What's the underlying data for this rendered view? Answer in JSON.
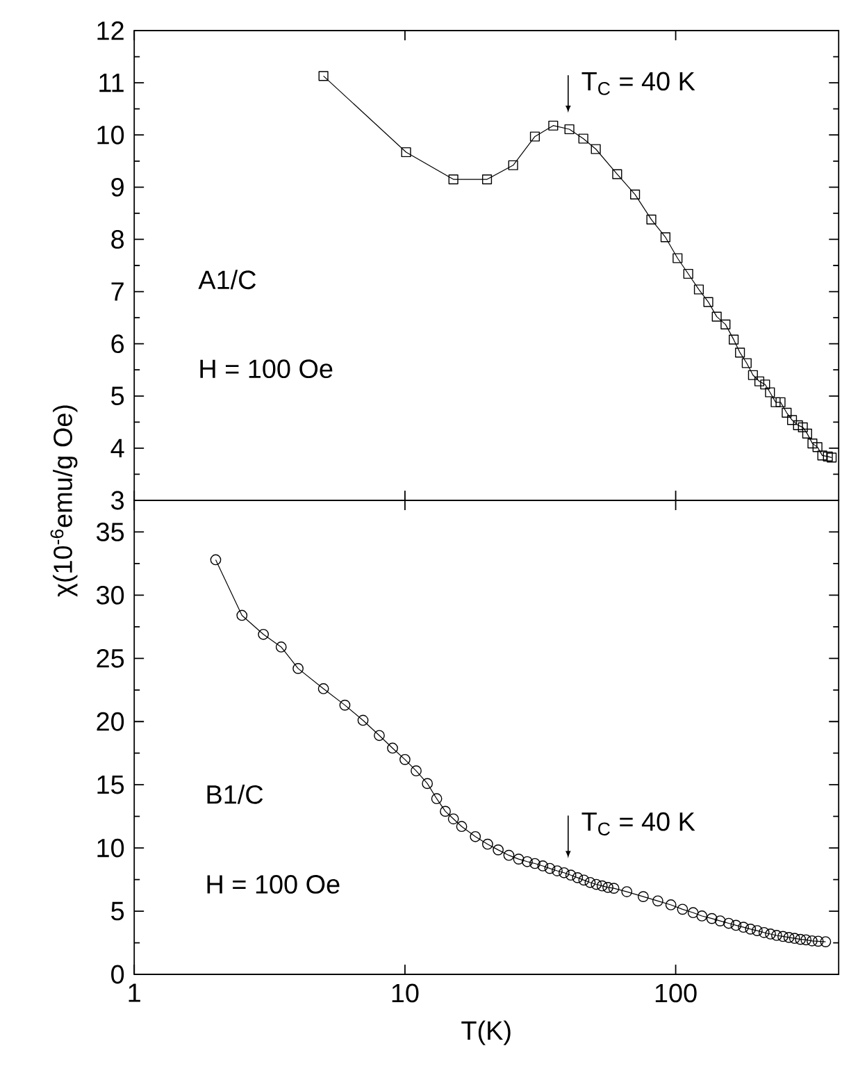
{
  "chart_data": [
    {
      "type": "line",
      "marker": "square",
      "line_style": "solid",
      "log": "x",
      "tick_labels": "y",
      "xlim": [
        1,
        400
      ],
      "xticks": [
        1,
        10,
        100
      ],
      "ylim": [
        3,
        12
      ],
      "yticks": [
        3,
        4,
        5,
        6,
        7,
        8,
        9,
        10,
        11,
        12
      ],
      "series": [
        {
          "color": "#000000",
          "x": [
            5.0,
            10.1,
            15.1,
            20.1,
            25.1,
            30.2,
            35.3,
            40.5,
            45.6,
            50.7,
            60.8,
            70.8,
            81.3,
            91.7,
            101.6,
            111.3,
            121.8,
            132,
            141.8,
            152.8,
            163.8,
            172.8,
            183,
            193,
            203.7,
            214,
            223,
            234,
            244,
            257,
            269,
            283,
            295,
            306,
            320,
            334,
            348,
            365,
            377
          ],
          "values": [
            11.13,
            9.67,
            9.15,
            9.15,
            9.42,
            9.97,
            10.18,
            10.11,
            9.93,
            9.73,
            9.25,
            8.86,
            8.38,
            8.04,
            7.64,
            7.34,
            7.04,
            6.8,
            6.52,
            6.37,
            6.08,
            5.83,
            5.63,
            5.4,
            5.28,
            5.22,
            5.07,
            4.88,
            4.88,
            4.68,
            4.54,
            4.44,
            4.4,
            4.28,
            4.09,
            4.02,
            3.86,
            3.84,
            3.82
          ]
        }
      ],
      "annotations": [
        "A1/C",
        "H = 100 Oe",
        "T$_{C}$ = 40 K"
      ]
    },
    {
      "type": "line",
      "marker": "circle",
      "line_style": "solid",
      "log": "x",
      "xlim": [
        1,
        400
      ],
      "xticks": [
        1,
        10,
        100
      ],
      "ylim": [
        0,
        37.5
      ],
      "yticks": [
        0,
        5,
        10,
        15,
        20,
        25,
        30,
        35
      ],
      "xlabel": "T(K)",
      "ylabel": "χ(10$^{-6}$emu/g Oe)",
      "series": [
        {
          "color": "#000000",
          "x": [
            2.0,
            2.5,
            3.0,
            3.49,
            4.03,
            5.0,
            6.0,
            7.0,
            8.04,
            9.0,
            10.0,
            11.0,
            12.1,
            13.1,
            14.1,
            15.1,
            16.2,
            18.2,
            20.2,
            22.1,
            24.2,
            26.3,
            28.3,
            30.2,
            32.3,
            34.3,
            36.5,
            38.7,
            41,
            43.4,
            45.8,
            48.3,
            50.9,
            53.5,
            56.2,
            59.1,
            66,
            75.9,
            85.9,
            96,
            106,
            116,
            125,
            136,
            146,
            157,
            167,
            178,
            189,
            200,
            212,
            224,
            236,
            249,
            262,
            275,
            289,
            303,
            319,
            336,
            358
          ],
          "values": [
            32.8,
            28.4,
            26.9,
            25.9,
            24.2,
            22.6,
            21.3,
            20.1,
            18.9,
            17.9,
            17.0,
            16.1,
            15.1,
            13.9,
            12.9,
            12.3,
            11.7,
            10.9,
            10.3,
            9.85,
            9.42,
            9.12,
            8.92,
            8.77,
            8.58,
            8.38,
            8.19,
            8.04,
            7.85,
            7.65,
            7.46,
            7.27,
            7.12,
            7.0,
            6.88,
            6.81,
            6.54,
            6.15,
            5.81,
            5.5,
            5.15,
            4.88,
            4.62,
            4.42,
            4.23,
            4.04,
            3.88,
            3.73,
            3.58,
            3.46,
            3.31,
            3.19,
            3.08,
            3.0,
            2.92,
            2.85,
            2.77,
            2.73,
            2.65,
            2.62,
            2.58
          ]
        }
      ],
      "annotations": [
        "B1/C",
        "H = 100 Oe",
        "T$_{C}$ = 40 K"
      ]
    }
  ]
}
